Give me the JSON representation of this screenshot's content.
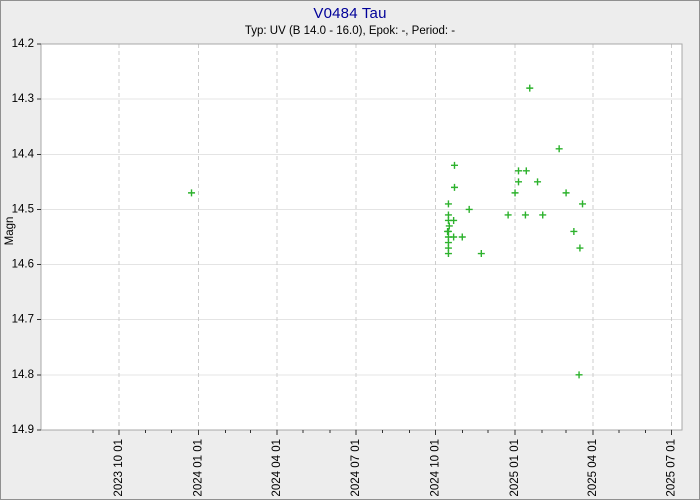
{
  "colors": {
    "title": "#000099",
    "text": "#000000",
    "marker": "#2db22d",
    "figure_bg": "#ededed",
    "plot_bg": "#ffffff",
    "grid_solid": "#e4e4e4",
    "grid_dashed": "#cccccc",
    "frame": "#a8a8a8",
    "tick": "#333333"
  },
  "chart_data": {
    "type": "scatter",
    "title": "V0484 Tau",
    "subtitle": "Typ: UV (B 14.0 - 16.0), Epok: -, Period: -",
    "xlabel": "",
    "ylabel": "Magn",
    "marker": {
      "shape": "plus",
      "color": "#2db22d",
      "size": 7
    },
    "grid": {
      "horizontal": "solid",
      "vertical": "dashed"
    },
    "legend": "none",
    "y_axis": {
      "min": 14.2,
      "max": 14.9,
      "inverted": true,
      "ticks": [
        14.2,
        14.3,
        14.4,
        14.5,
        14.6,
        14.7,
        14.8,
        14.9
      ],
      "tick_labels": [
        "14.2",
        "14.3",
        "14.4",
        "14.5",
        "14.6",
        "14.7",
        "14.8",
        "14.9"
      ]
    },
    "x_axis": {
      "min": "2023-07-03",
      "max": "2025-07-13",
      "major_ticks": [
        "2023-10-01",
        "2024-01-01",
        "2024-04-01",
        "2024-07-01",
        "2024-10-01",
        "2025-01-01",
        "2025-04-01",
        "2025-07-01"
      ],
      "tick_labels": [
        "2023 10 01",
        "2024 01 01",
        "2024 04 01",
        "2024 07 01",
        "2024 10 01",
        "2025 01 01",
        "2025 04 01",
        "2025 07 01"
      ],
      "minor_ticks": "monthly"
    },
    "points": [
      [
        "2023-12-24",
        14.47
      ],
      [
        "2024-10-23",
        14.42
      ],
      [
        "2024-10-23",
        14.46
      ],
      [
        "2024-10-16",
        14.49
      ],
      [
        "2024-10-16",
        14.51
      ],
      [
        "2024-10-22",
        14.52
      ],
      [
        "2024-10-16",
        14.52
      ],
      [
        "2024-10-17",
        14.53
      ],
      [
        "2024-10-15",
        14.54
      ],
      [
        "2024-10-16",
        14.54
      ],
      [
        "2024-10-16",
        14.55
      ],
      [
        "2024-10-22",
        14.55
      ],
      [
        "2024-11-01",
        14.55
      ],
      [
        "2024-10-16",
        14.56
      ],
      [
        "2024-10-16",
        14.57
      ],
      [
        "2024-10-16",
        14.58
      ],
      [
        "2024-11-09",
        14.5
      ],
      [
        "2024-11-23",
        14.58
      ],
      [
        "2024-12-24",
        14.51
      ],
      [
        "2025-01-01",
        14.47
      ],
      [
        "2025-01-05",
        14.43
      ],
      [
        "2025-01-14",
        14.43
      ],
      [
        "2025-01-05",
        14.45
      ],
      [
        "2025-01-27",
        14.45
      ],
      [
        "2025-01-13",
        14.51
      ],
      [
        "2025-02-02",
        14.51
      ],
      [
        "2025-01-18",
        14.28
      ],
      [
        "2025-02-21",
        14.39
      ],
      [
        "2025-03-01",
        14.47
      ],
      [
        "2025-03-20",
        14.49
      ],
      [
        "2025-03-10",
        14.54
      ],
      [
        "2025-03-17",
        14.57
      ],
      [
        "2025-03-16",
        14.8
      ]
    ]
  }
}
